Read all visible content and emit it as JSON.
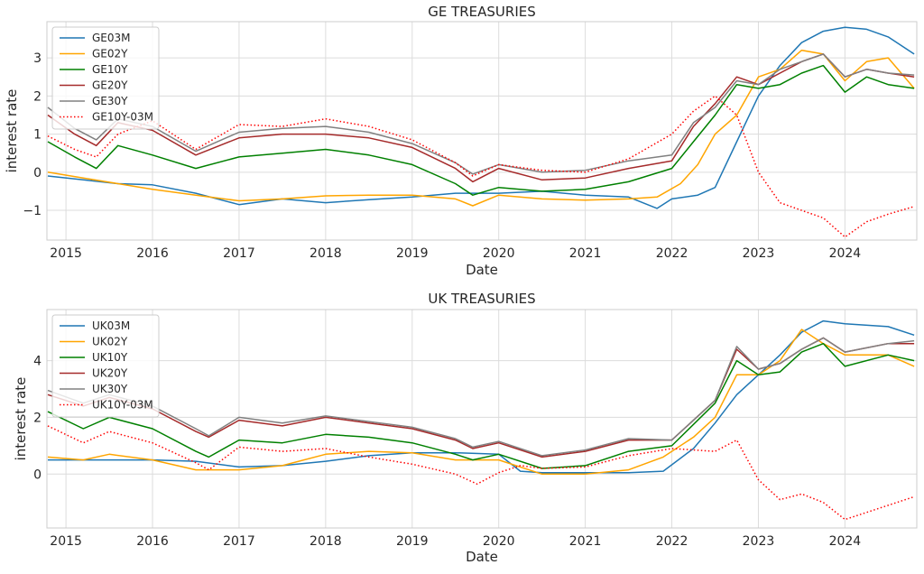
{
  "chart_data": [
    {
      "type": "line",
      "title": "GE TREASURIES",
      "xlabel": "Date",
      "ylabel": "interest rate",
      "xlim": [
        2014.78,
        2024.83
      ],
      "ylim": [
        -1.78,
        3.95
      ],
      "x_ticks": [
        "2015",
        "2016",
        "2017",
        "2018",
        "2019",
        "2020",
        "2021",
        "2022",
        "2023",
        "2024"
      ],
      "y_ticks": [
        -1,
        0,
        1,
        2,
        3
      ],
      "grid": true,
      "legend": "top-left",
      "colors": {
        "GE03M": "#1f77b4",
        "GE02Y": "#ffa500",
        "GE10Y": "#008000",
        "GE20Y": "#a52a2a",
        "GE30Y": "#808080",
        "GE10Y-03M": "#ff0000"
      },
      "series": [
        {
          "name": "GE03M",
          "style": "solid",
          "x": [
            2014.79,
            2015.2,
            2015.6,
            2016.0,
            2016.5,
            2017.0,
            2017.5,
            2018.0,
            2018.5,
            2019.0,
            2019.5,
            2020.0,
            2020.5,
            2021.0,
            2021.5,
            2021.83,
            2022.0,
            2022.3,
            2022.5,
            2022.75,
            2023.0,
            2023.25,
            2023.5,
            2023.75,
            2024.0,
            2024.25,
            2024.5,
            2024.8
          ],
          "values": [
            -0.1,
            -0.2,
            -0.3,
            -0.33,
            -0.55,
            -0.85,
            -0.7,
            -0.8,
            -0.72,
            -0.65,
            -0.55,
            -0.55,
            -0.5,
            -0.6,
            -0.65,
            -0.95,
            -0.7,
            -0.6,
            -0.4,
            0.8,
            2.0,
            2.8,
            3.4,
            3.7,
            3.8,
            3.75,
            3.55,
            3.1
          ]
        },
        {
          "name": "GE02Y",
          "style": "solid",
          "x": [
            2014.79,
            2015.2,
            2015.6,
            2016.0,
            2016.5,
            2017.0,
            2017.5,
            2018.0,
            2018.5,
            2019.0,
            2019.5,
            2019.7,
            2020.0,
            2020.5,
            2021.0,
            2021.5,
            2021.83,
            2022.1,
            2022.3,
            2022.5,
            2022.75,
            2023.0,
            2023.25,
            2023.5,
            2023.75,
            2024.0,
            2024.25,
            2024.5,
            2024.8
          ],
          "values": [
            0.0,
            -0.15,
            -0.3,
            -0.45,
            -0.6,
            -0.75,
            -0.7,
            -0.62,
            -0.6,
            -0.6,
            -0.7,
            -0.88,
            -0.6,
            -0.7,
            -0.73,
            -0.7,
            -0.65,
            -0.3,
            0.2,
            1.0,
            1.5,
            2.5,
            2.7,
            3.2,
            3.1,
            2.4,
            2.9,
            3.0,
            2.2
          ]
        },
        {
          "name": "GE10Y",
          "style": "solid",
          "x": [
            2014.79,
            2015.1,
            2015.35,
            2015.6,
            2016.0,
            2016.5,
            2017.0,
            2017.5,
            2018.0,
            2018.5,
            2019.0,
            2019.5,
            2019.7,
            2020.0,
            2020.5,
            2021.0,
            2021.5,
            2022.0,
            2022.25,
            2022.5,
            2022.75,
            2023.0,
            2023.25,
            2023.5,
            2023.75,
            2024.0,
            2024.25,
            2024.5,
            2024.8
          ],
          "values": [
            0.8,
            0.4,
            0.1,
            0.7,
            0.45,
            0.1,
            0.4,
            0.5,
            0.6,
            0.45,
            0.2,
            -0.3,
            -0.6,
            -0.4,
            -0.5,
            -0.45,
            -0.25,
            0.1,
            0.8,
            1.5,
            2.3,
            2.2,
            2.3,
            2.6,
            2.8,
            2.1,
            2.5,
            2.3,
            2.2
          ]
        },
        {
          "name": "GE20Y",
          "style": "solid",
          "x": [
            2014.79,
            2015.1,
            2015.35,
            2015.6,
            2016.0,
            2016.5,
            2017.0,
            2017.5,
            2018.0,
            2018.5,
            2019.0,
            2019.5,
            2019.7,
            2020.0,
            2020.5,
            2021.0,
            2021.5,
            2022.0,
            2022.25,
            2022.5,
            2022.75,
            2023.0,
            2023.25,
            2023.5,
            2023.75,
            2024.0,
            2024.25,
            2024.5,
            2024.8
          ],
          "values": [
            1.5,
            1.0,
            0.7,
            1.3,
            1.1,
            0.45,
            0.9,
            1.0,
            1.0,
            0.9,
            0.65,
            0.1,
            -0.25,
            0.1,
            -0.2,
            -0.15,
            0.1,
            0.3,
            1.2,
            1.8,
            2.5,
            2.3,
            2.6,
            2.9,
            3.1,
            2.5,
            2.7,
            2.6,
            2.5
          ]
        },
        {
          "name": "GE30Y",
          "style": "solid",
          "x": [
            2014.79,
            2015.1,
            2015.35,
            2015.6,
            2016.0,
            2016.5,
            2017.0,
            2017.5,
            2018.0,
            2018.5,
            2019.0,
            2019.5,
            2019.7,
            2020.0,
            2020.5,
            2021.0,
            2021.5,
            2022.0,
            2022.25,
            2022.5,
            2022.75,
            2023.0,
            2023.25,
            2023.5,
            2023.75,
            2024.0,
            2024.25,
            2024.5,
            2024.8
          ],
          "values": [
            1.7,
            1.15,
            0.85,
            1.4,
            1.2,
            0.55,
            1.05,
            1.15,
            1.2,
            1.05,
            0.75,
            0.25,
            -0.05,
            0.2,
            0.0,
            0.05,
            0.3,
            0.45,
            1.3,
            1.7,
            2.4,
            2.3,
            2.7,
            2.9,
            3.1,
            2.5,
            2.7,
            2.6,
            2.55
          ]
        },
        {
          "name": "GE10Y-03M",
          "style": "dotted",
          "x": [
            2014.79,
            2015.1,
            2015.35,
            2015.6,
            2016.0,
            2016.5,
            2017.0,
            2017.5,
            2018.0,
            2018.5,
            2019.0,
            2019.5,
            2019.7,
            2020.0,
            2020.5,
            2021.0,
            2021.5,
            2022.0,
            2022.25,
            2022.5,
            2022.75,
            2023.0,
            2023.25,
            2023.5,
            2023.75,
            2024.0,
            2024.25,
            2024.5,
            2024.8
          ],
          "values": [
            0.95,
            0.6,
            0.4,
            1.0,
            1.35,
            0.6,
            1.25,
            1.2,
            1.4,
            1.2,
            0.85,
            0.25,
            -0.1,
            0.2,
            0.05,
            0.0,
            0.35,
            1.0,
            1.6,
            2.0,
            1.5,
            0.0,
            -0.8,
            -1.0,
            -1.2,
            -1.7,
            -1.3,
            -1.1,
            -0.9
          ]
        }
      ]
    },
    {
      "type": "line",
      "title": "UK TREASURIES",
      "xlabel": "Date",
      "ylabel": "interest rate",
      "xlim": [
        2014.78,
        2024.83
      ],
      "ylim": [
        -1.9,
        5.8
      ],
      "x_ticks": [
        "2015",
        "2016",
        "2017",
        "2018",
        "2019",
        "2020",
        "2021",
        "2022",
        "2023",
        "2024"
      ],
      "y_ticks": [
        0,
        2,
        4
      ],
      "grid": true,
      "legend": "top-left",
      "colors": {
        "UK03M": "#1f77b4",
        "UK02Y": "#ffa500",
        "UK10Y": "#008000",
        "UK20Y": "#a52a2a",
        "UK30Y": "#808080",
        "UK10Y-03M": "#ff0000"
      },
      "series": [
        {
          "name": "UK03M",
          "style": "solid",
          "x": [
            2014.79,
            2015.5,
            2016.0,
            2016.5,
            2017.0,
            2017.5,
            2018.0,
            2018.5,
            2019.0,
            2019.5,
            2020.0,
            2020.25,
            2020.5,
            2021.0,
            2021.5,
            2021.9,
            2022.25,
            2022.5,
            2022.75,
            2023.0,
            2023.25,
            2023.5,
            2023.75,
            2024.0,
            2024.5,
            2024.8
          ],
          "values": [
            0.5,
            0.5,
            0.5,
            0.45,
            0.25,
            0.3,
            0.45,
            0.65,
            0.75,
            0.75,
            0.7,
            0.1,
            0.05,
            0.05,
            0.05,
            0.1,
            0.9,
            1.8,
            2.8,
            3.5,
            4.2,
            5.0,
            5.4,
            5.3,
            5.2,
            4.9
          ]
        },
        {
          "name": "UK02Y",
          "style": "solid",
          "x": [
            2014.79,
            2015.2,
            2015.5,
            2016.0,
            2016.5,
            2017.0,
            2017.5,
            2018.0,
            2018.5,
            2019.0,
            2019.5,
            2020.0,
            2020.5,
            2021.0,
            2021.5,
            2021.9,
            2022.25,
            2022.5,
            2022.75,
            2023.0,
            2023.25,
            2023.5,
            2023.75,
            2024.0,
            2024.5,
            2024.8
          ],
          "values": [
            0.6,
            0.5,
            0.7,
            0.5,
            0.15,
            0.15,
            0.3,
            0.7,
            0.8,
            0.75,
            0.5,
            0.5,
            0.0,
            0.0,
            0.15,
            0.6,
            1.3,
            2.0,
            3.5,
            3.5,
            4.0,
            5.1,
            4.6,
            4.2,
            4.2,
            3.8
          ]
        },
        {
          "name": "UK10Y",
          "style": "solid",
          "x": [
            2014.79,
            2015.2,
            2015.5,
            2016.0,
            2016.5,
            2016.65,
            2017.0,
            2017.5,
            2018.0,
            2018.5,
            2019.0,
            2019.5,
            2019.7,
            2020.0,
            2020.5,
            2021.0,
            2021.5,
            2022.0,
            2022.5,
            2022.75,
            2023.0,
            2023.25,
            2023.5,
            2023.75,
            2024.0,
            2024.5,
            2024.8
          ],
          "values": [
            2.2,
            1.6,
            2.0,
            1.6,
            0.8,
            0.6,
            1.2,
            1.1,
            1.4,
            1.3,
            1.1,
            0.7,
            0.5,
            0.7,
            0.2,
            0.3,
            0.8,
            1.0,
            2.5,
            4.0,
            3.5,
            3.6,
            4.3,
            4.6,
            3.8,
            4.2,
            4.0
          ]
        },
        {
          "name": "UK20Y",
          "style": "solid",
          "x": [
            2014.79,
            2015.2,
            2015.5,
            2016.0,
            2016.5,
            2016.65,
            2017.0,
            2017.5,
            2018.0,
            2018.5,
            2019.0,
            2019.5,
            2019.7,
            2020.0,
            2020.5,
            2021.0,
            2021.5,
            2022.0,
            2022.5,
            2022.75,
            2023.0,
            2023.25,
            2023.5,
            2023.75,
            2024.0,
            2024.5,
            2024.8
          ],
          "values": [
            2.8,
            2.4,
            2.7,
            2.3,
            1.5,
            1.3,
            1.9,
            1.7,
            2.0,
            1.8,
            1.6,
            1.2,
            0.9,
            1.1,
            0.6,
            0.8,
            1.2,
            1.2,
            2.6,
            4.4,
            3.7,
            3.9,
            4.4,
            4.8,
            4.3,
            4.6,
            4.6
          ]
        },
        {
          "name": "UK30Y",
          "style": "solid",
          "x": [
            2014.79,
            2015.2,
            2015.5,
            2016.0,
            2016.5,
            2016.65,
            2017.0,
            2017.5,
            2018.0,
            2018.5,
            2019.0,
            2019.5,
            2019.7,
            2020.0,
            2020.5,
            2021.0,
            2021.5,
            2022.0,
            2022.5,
            2022.75,
            2023.0,
            2023.25,
            2023.5,
            2023.75,
            2024.0,
            2024.5,
            2024.8
          ],
          "values": [
            2.95,
            2.5,
            2.8,
            2.4,
            1.6,
            1.35,
            2.0,
            1.8,
            2.05,
            1.85,
            1.65,
            1.25,
            0.95,
            1.15,
            0.65,
            0.85,
            1.25,
            1.2,
            2.6,
            4.5,
            3.7,
            3.9,
            4.4,
            4.8,
            4.3,
            4.6,
            4.7
          ]
        },
        {
          "name": "UK10Y-03M",
          "style": "dotted",
          "x": [
            2014.79,
            2015.2,
            2015.5,
            2016.0,
            2016.5,
            2016.65,
            2017.0,
            2017.5,
            2018.0,
            2018.5,
            2019.0,
            2019.5,
            2019.75,
            2020.0,
            2020.25,
            2020.5,
            2021.0,
            2021.5,
            2022.0,
            2022.5,
            2022.75,
            2023.0,
            2023.25,
            2023.5,
            2023.75,
            2024.0,
            2024.5,
            2024.8
          ],
          "values": [
            1.7,
            1.1,
            1.5,
            1.1,
            0.4,
            0.15,
            0.95,
            0.8,
            0.9,
            0.6,
            0.35,
            0.0,
            -0.35,
            0.05,
            0.3,
            0.2,
            0.25,
            0.65,
            0.9,
            0.8,
            1.2,
            -0.2,
            -0.9,
            -0.7,
            -1.0,
            -1.6,
            -1.1,
            -0.8
          ]
        }
      ]
    }
  ]
}
